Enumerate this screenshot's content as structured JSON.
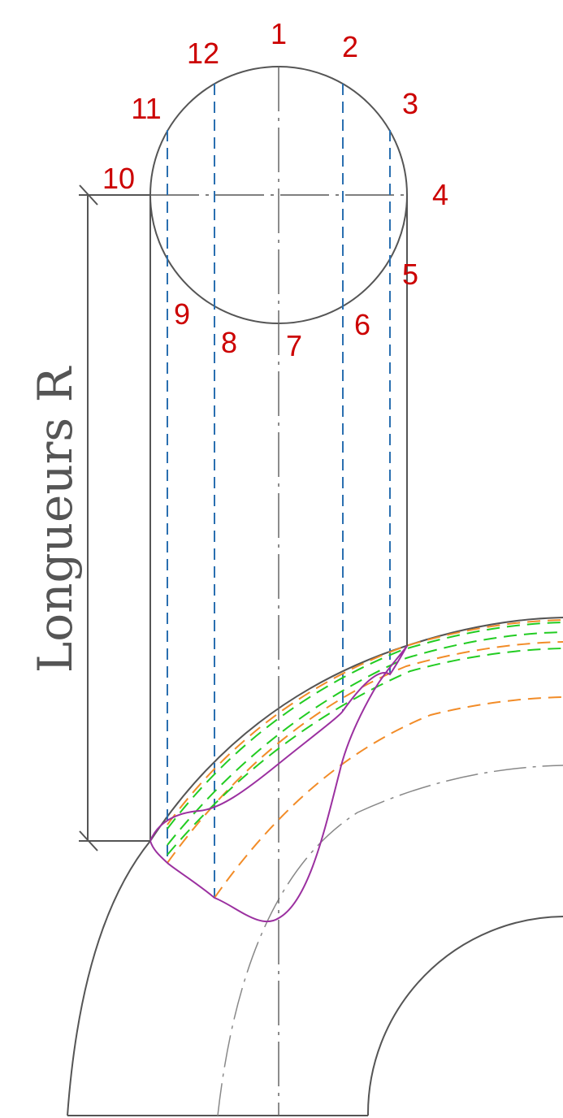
{
  "colors": {
    "outline": "#555555",
    "axis": "#888888",
    "number_labels": "#cc0000",
    "projection_lines": "#2a6fb0",
    "curve_lines_orange": "#f28c28",
    "curve_lines_green": "#22cc22",
    "intersection_curve": "#9b30a0"
  },
  "point_labels": [
    "1",
    "2",
    "3",
    "4",
    "5",
    "6",
    "7",
    "8",
    "9",
    "10",
    "11",
    "12"
  ],
  "dimension_label": "Longueurs R"
}
